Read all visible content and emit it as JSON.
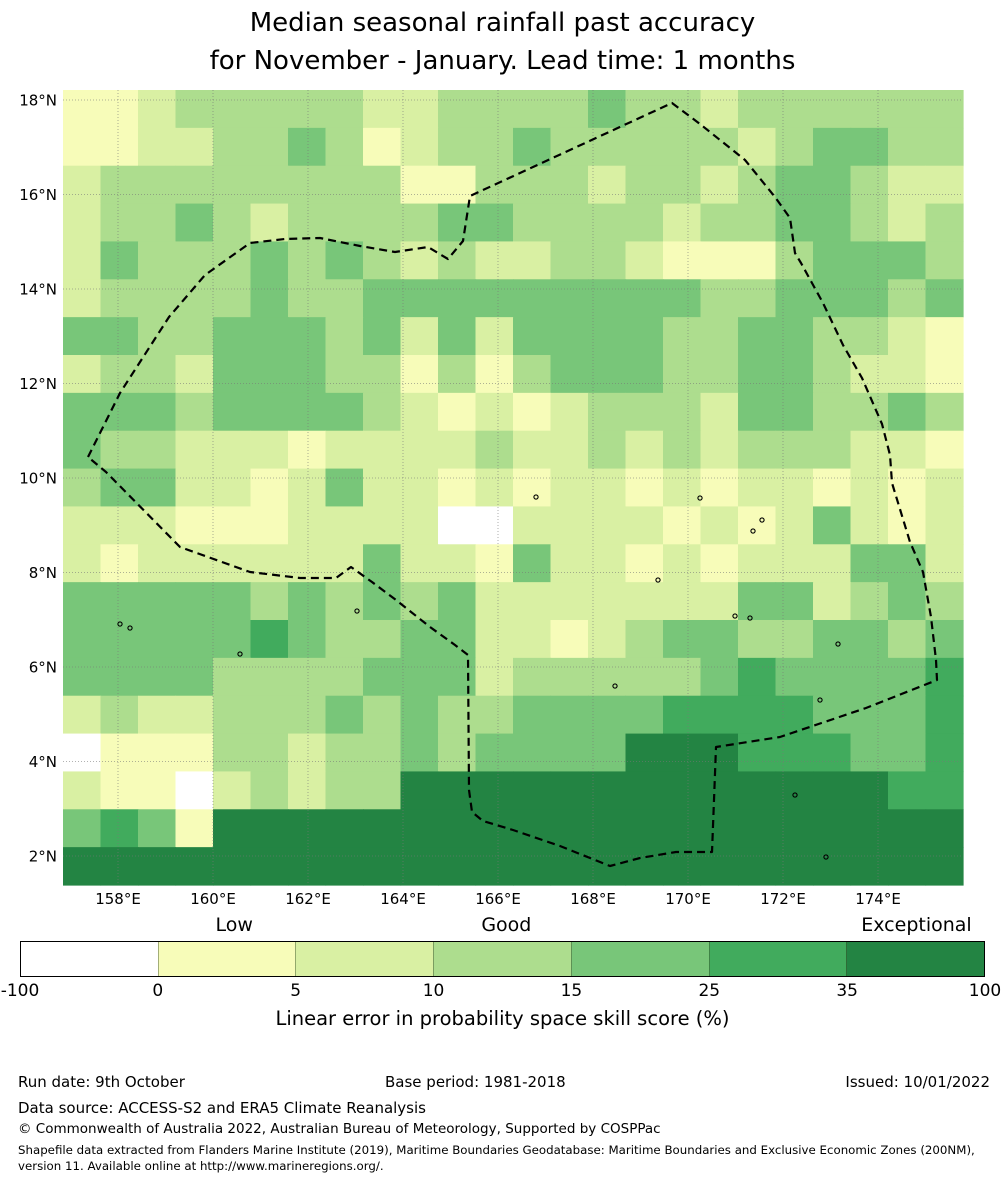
{
  "title": {
    "line1": "Median seasonal rainfall past accuracy",
    "line2": "for November - January. Lead time: 1 months"
  },
  "chart_data": {
    "type": "heatmap",
    "title": "Median seasonal rainfall past accuracy for November - January. Lead time: 1 months",
    "x_tick_labels": [
      "158°E",
      "160°E",
      "162°E",
      "164°E",
      "166°E",
      "168°E",
      "170°E",
      "172°E",
      "174°E"
    ],
    "y_tick_labels": [
      "18°N",
      "16°N",
      "14°N",
      "12°N",
      "10°N",
      "8°N",
      "6°N",
      "4°N",
      "2°N"
    ],
    "grid_on": true,
    "grid_cols": 24,
    "grid_rows": 21,
    "palette": [
      "#ffffff",
      "#f7fcb9",
      "#d9f0a3",
      "#addd8e",
      "#78c679",
      "#41ab5d",
      "#238443"
    ],
    "palette_meaning": "index into skill-score bins bounded by thresholds",
    "thresholds": [
      -100,
      0,
      5,
      10,
      15,
      25,
      35,
      100
    ],
    "cell_colors_idx": [
      "112333332233334332333333",
      "112233431233433333234433",
      "233333333113332332344322",
      "233432333344333323344323",
      "243334343232233211134443",
      "233334334444444443344434",
      "443344434242444433443321",
      "233244433131344433443221",
      "444344443212123332443343",
      "433222122223223232333221",
      "344221242212122121221212",
      "222111222200222212124212",
      "212222224221422121222442",
      "444443434342222222442343",
      "444445433442212344334434",
      "444433334442333334544445",
      "232233343433444455554445",
      "011133233434444666555445",
      "211023233666666666666655",
      "454166666666666666666666",
      "666666666666666666666666"
    ],
    "eez_boundary": [
      [
        88,
        457
      ],
      [
        120,
        393
      ],
      [
        169,
        317
      ],
      [
        205,
        275
      ],
      [
        250,
        243
      ],
      [
        285,
        239
      ],
      [
        320,
        238
      ],
      [
        360,
        246
      ],
      [
        395,
        252
      ],
      [
        428,
        247
      ],
      [
        448,
        259
      ],
      [
        463,
        241
      ],
      [
        470,
        196
      ],
      [
        672,
        103
      ],
      [
        700,
        124
      ],
      [
        745,
        160
      ],
      [
        775,
        197
      ],
      [
        790,
        218
      ],
      [
        795,
        253
      ],
      [
        801,
        263
      ],
      [
        823,
        303
      ],
      [
        843,
        345
      ],
      [
        862,
        378
      ],
      [
        882,
        424
      ],
      [
        890,
        455
      ],
      [
        892,
        483
      ],
      [
        910,
        542
      ],
      [
        923,
        572
      ],
      [
        931,
        617
      ],
      [
        936,
        660
      ],
      [
        937,
        680
      ],
      [
        866,
        708
      ],
      [
        780,
        737
      ],
      [
        716,
        747
      ],
      [
        714,
        800
      ],
      [
        712,
        852
      ],
      [
        676,
        852
      ],
      [
        640,
        858
      ],
      [
        610,
        866
      ],
      [
        560,
        846
      ],
      [
        513,
        830
      ],
      [
        483,
        821
      ],
      [
        472,
        812
      ],
      [
        469,
        790
      ],
      [
        468,
        655
      ],
      [
        455,
        645
      ],
      [
        430,
        627
      ],
      [
        396,
        600
      ],
      [
        372,
        582
      ],
      [
        351,
        567
      ],
      [
        336,
        578
      ],
      [
        300,
        578
      ],
      [
        250,
        572
      ],
      [
        180,
        547
      ],
      [
        106,
        472
      ]
    ],
    "islands": [
      [
        120,
        624
      ],
      [
        130,
        628
      ],
      [
        240,
        654
      ],
      [
        357,
        611
      ],
      [
        536,
        497
      ],
      [
        700,
        498
      ],
      [
        735,
        616
      ],
      [
        750,
        618
      ],
      [
        762,
        520
      ],
      [
        753,
        531
      ],
      [
        820,
        700
      ],
      [
        795,
        795
      ],
      [
        826,
        857
      ],
      [
        838,
        644
      ],
      [
        615,
        686
      ],
      [
        658,
        580
      ]
    ],
    "colorbar": {
      "ticks": [
        "-100",
        "0",
        "5",
        "10",
        "15",
        "25",
        "35",
        "100"
      ],
      "categories": [
        {
          "label": "Low",
          "pos_pct": 22.2
        },
        {
          "label": "Good",
          "pos_pct": 50.4
        },
        {
          "label": "Exceptional",
          "pos_pct": 92.9
        }
      ],
      "title": "Linear error in probability space skill score (%)"
    }
  },
  "footer": {
    "run_date": "Run date: 9th October",
    "base_period": "Base period: 1981-2018",
    "issued": "Issued: 10/01/2022",
    "data_source": "Data source: ACCESS-S2 and ERA5 Climate Reanalysis",
    "copyright": "© Commonwealth of Australia 2022, Australian Bureau of Meteorology, Supported by COSPPac",
    "shapefile_line1": "Shapefile data extracted from Flanders Marine Institute (2019), Maritime Boundaries Geodatabase: Maritime Boundaries and Exclusive Economic Zones (200NM),",
    "shapefile_line2": "version 11. Available online at http://www.marineregions.org/."
  }
}
